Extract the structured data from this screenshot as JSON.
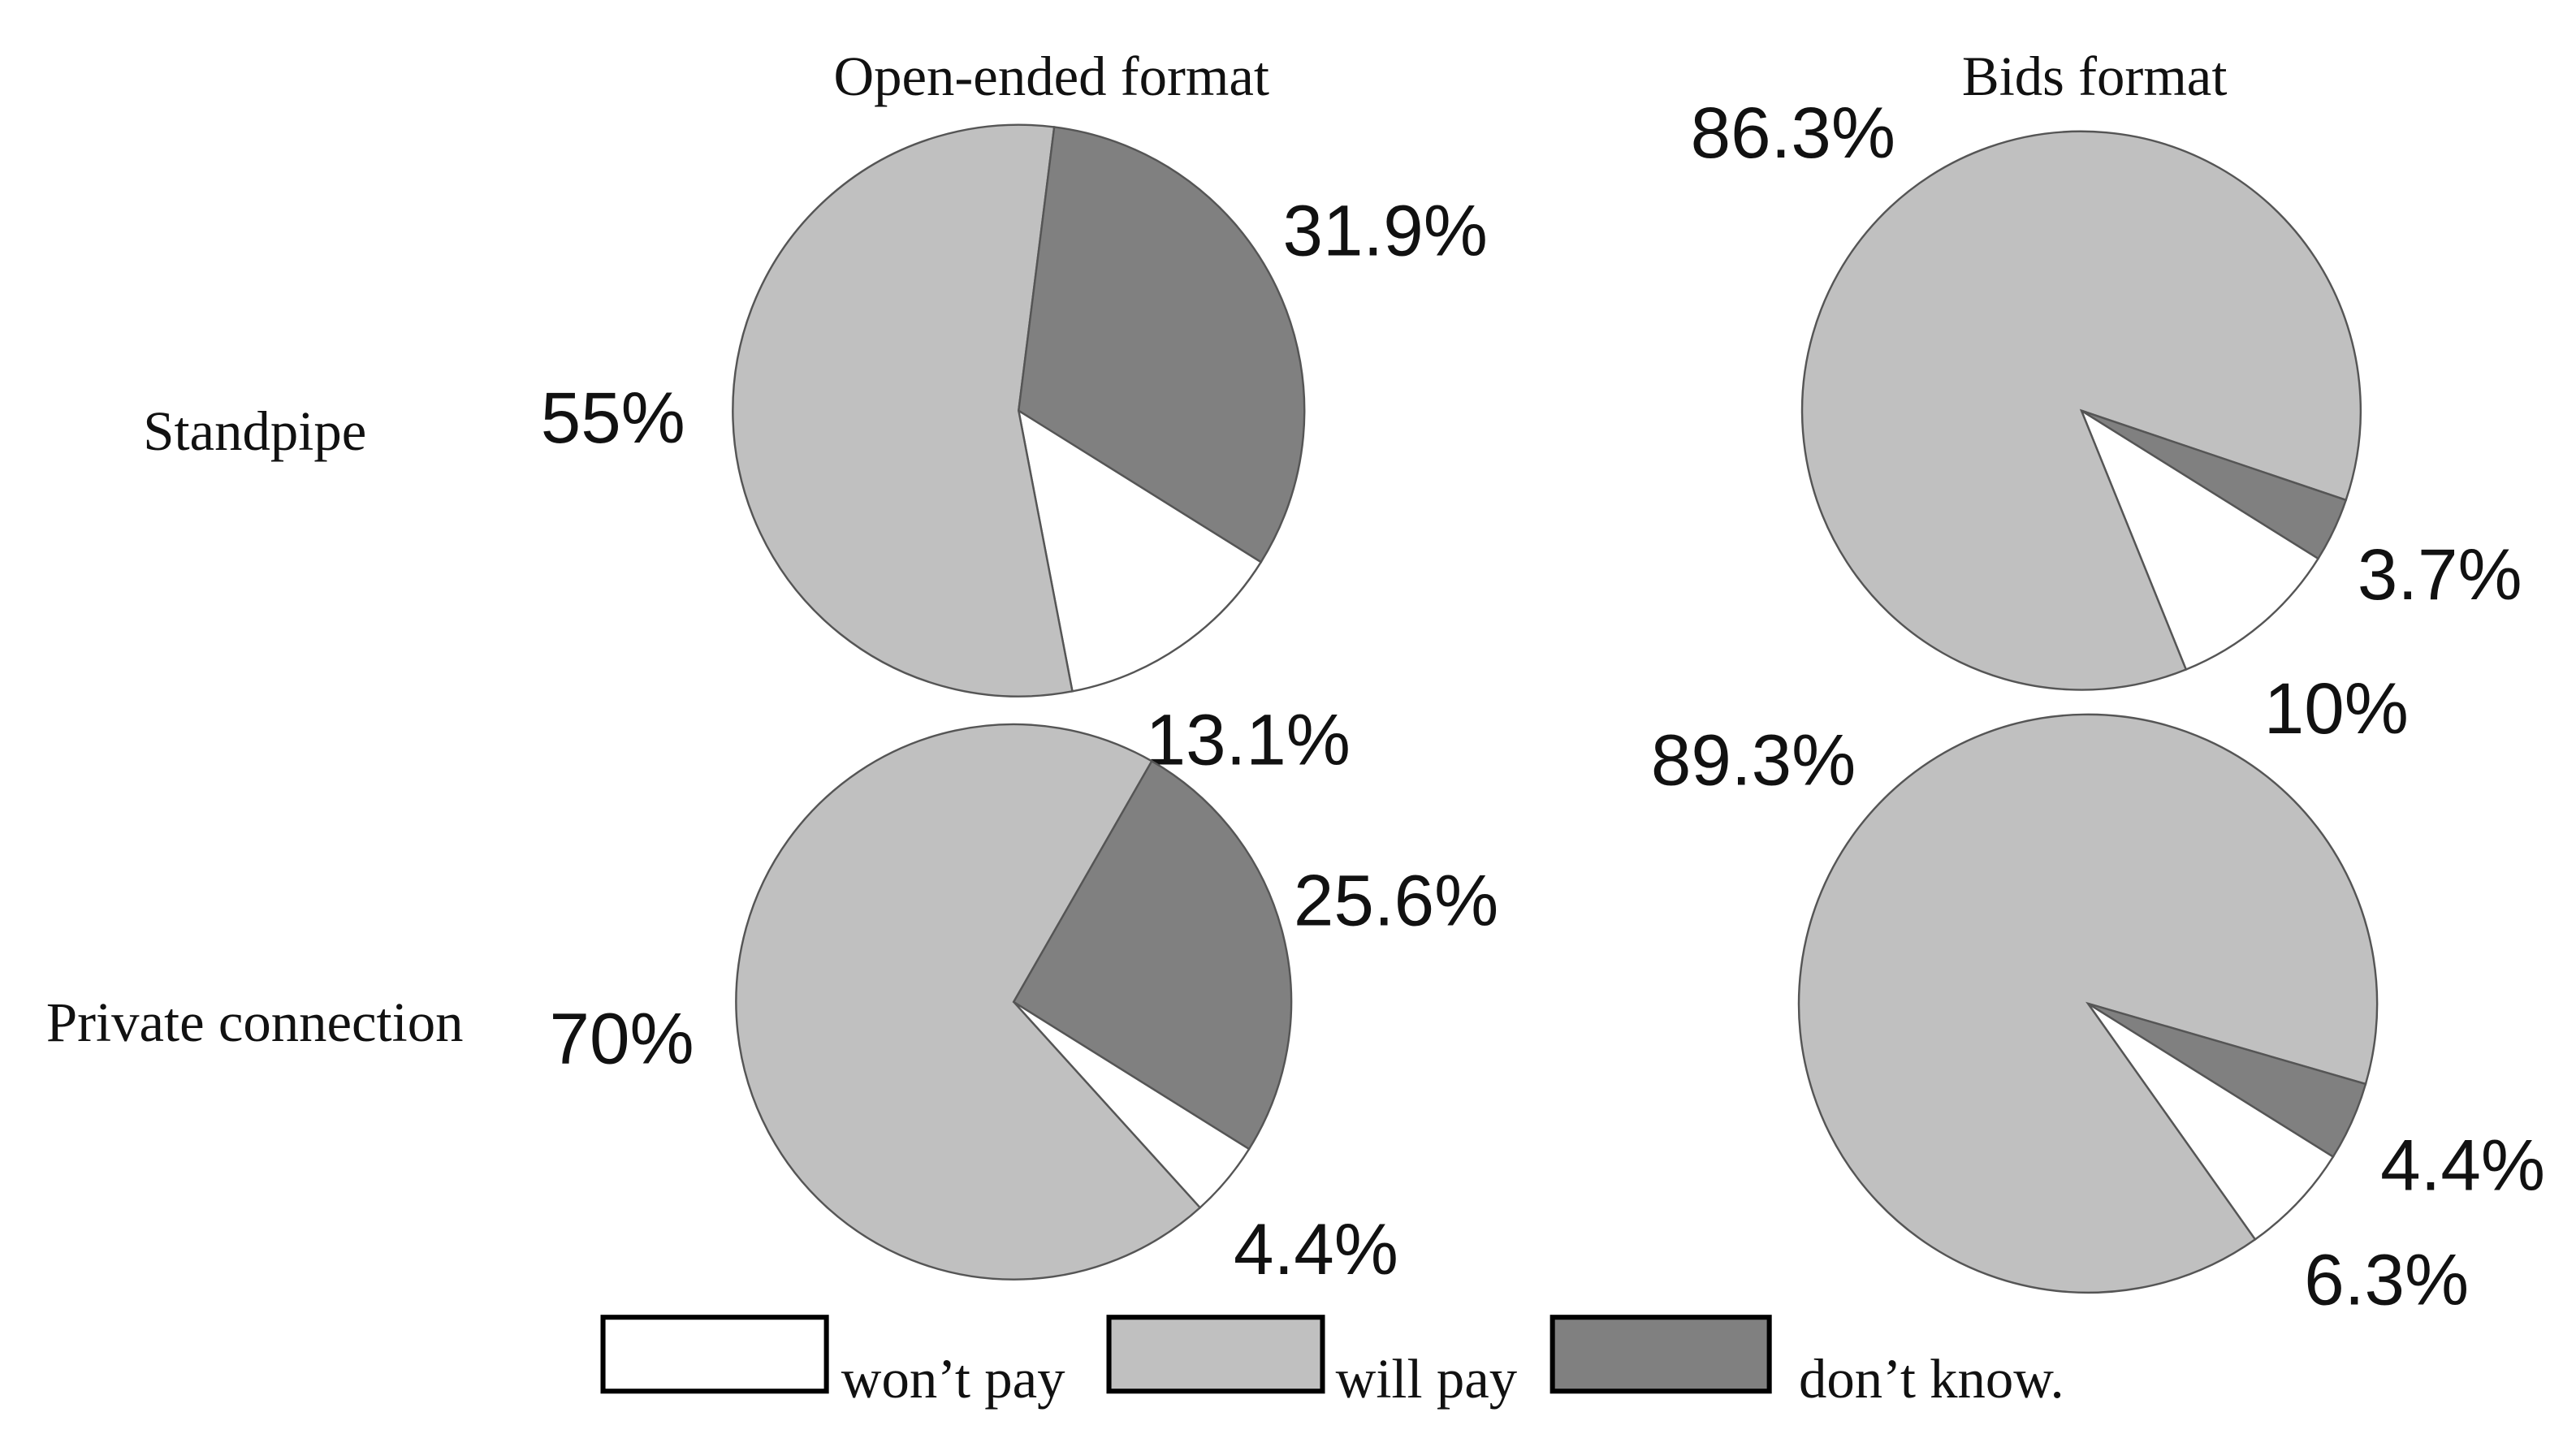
{
  "column_titles": [
    "Open-ended format",
    "Bids format"
  ],
  "row_labels": [
    "Standpipe",
    "Private connection"
  ],
  "legend": {
    "labels": [
      "won’t pay",
      "will pay",
      "don’t know."
    ],
    "colors": [
      "#ffffff",
      "#c0c0c0",
      "#808080"
    ]
  },
  "chart_data": [
    {
      "type": "pie",
      "values": [
        13.1,
        55,
        31.9
      ],
      "value_labels": [
        "13.1%",
        "55%",
        "31.9%"
      ],
      "startangle": 122
    },
    {
      "type": "pie",
      "values": [
        10,
        86.3,
        3.7
      ],
      "value_labels": [
        "10%",
        "86.3%",
        "3.7%"
      ],
      "startangle": 122
    },
    {
      "type": "pie",
      "values": [
        4.4,
        70,
        25.6
      ],
      "value_labels": [
        "4.4%",
        "70%",
        "25.6%"
      ],
      "startangle": 122
    },
    {
      "type": "pie",
      "values": [
        6.3,
        89.3,
        4.4
      ],
      "value_labels": [
        "6.3%",
        "89.3%",
        "4.4%"
      ],
      "startangle": 122
    }
  ]
}
